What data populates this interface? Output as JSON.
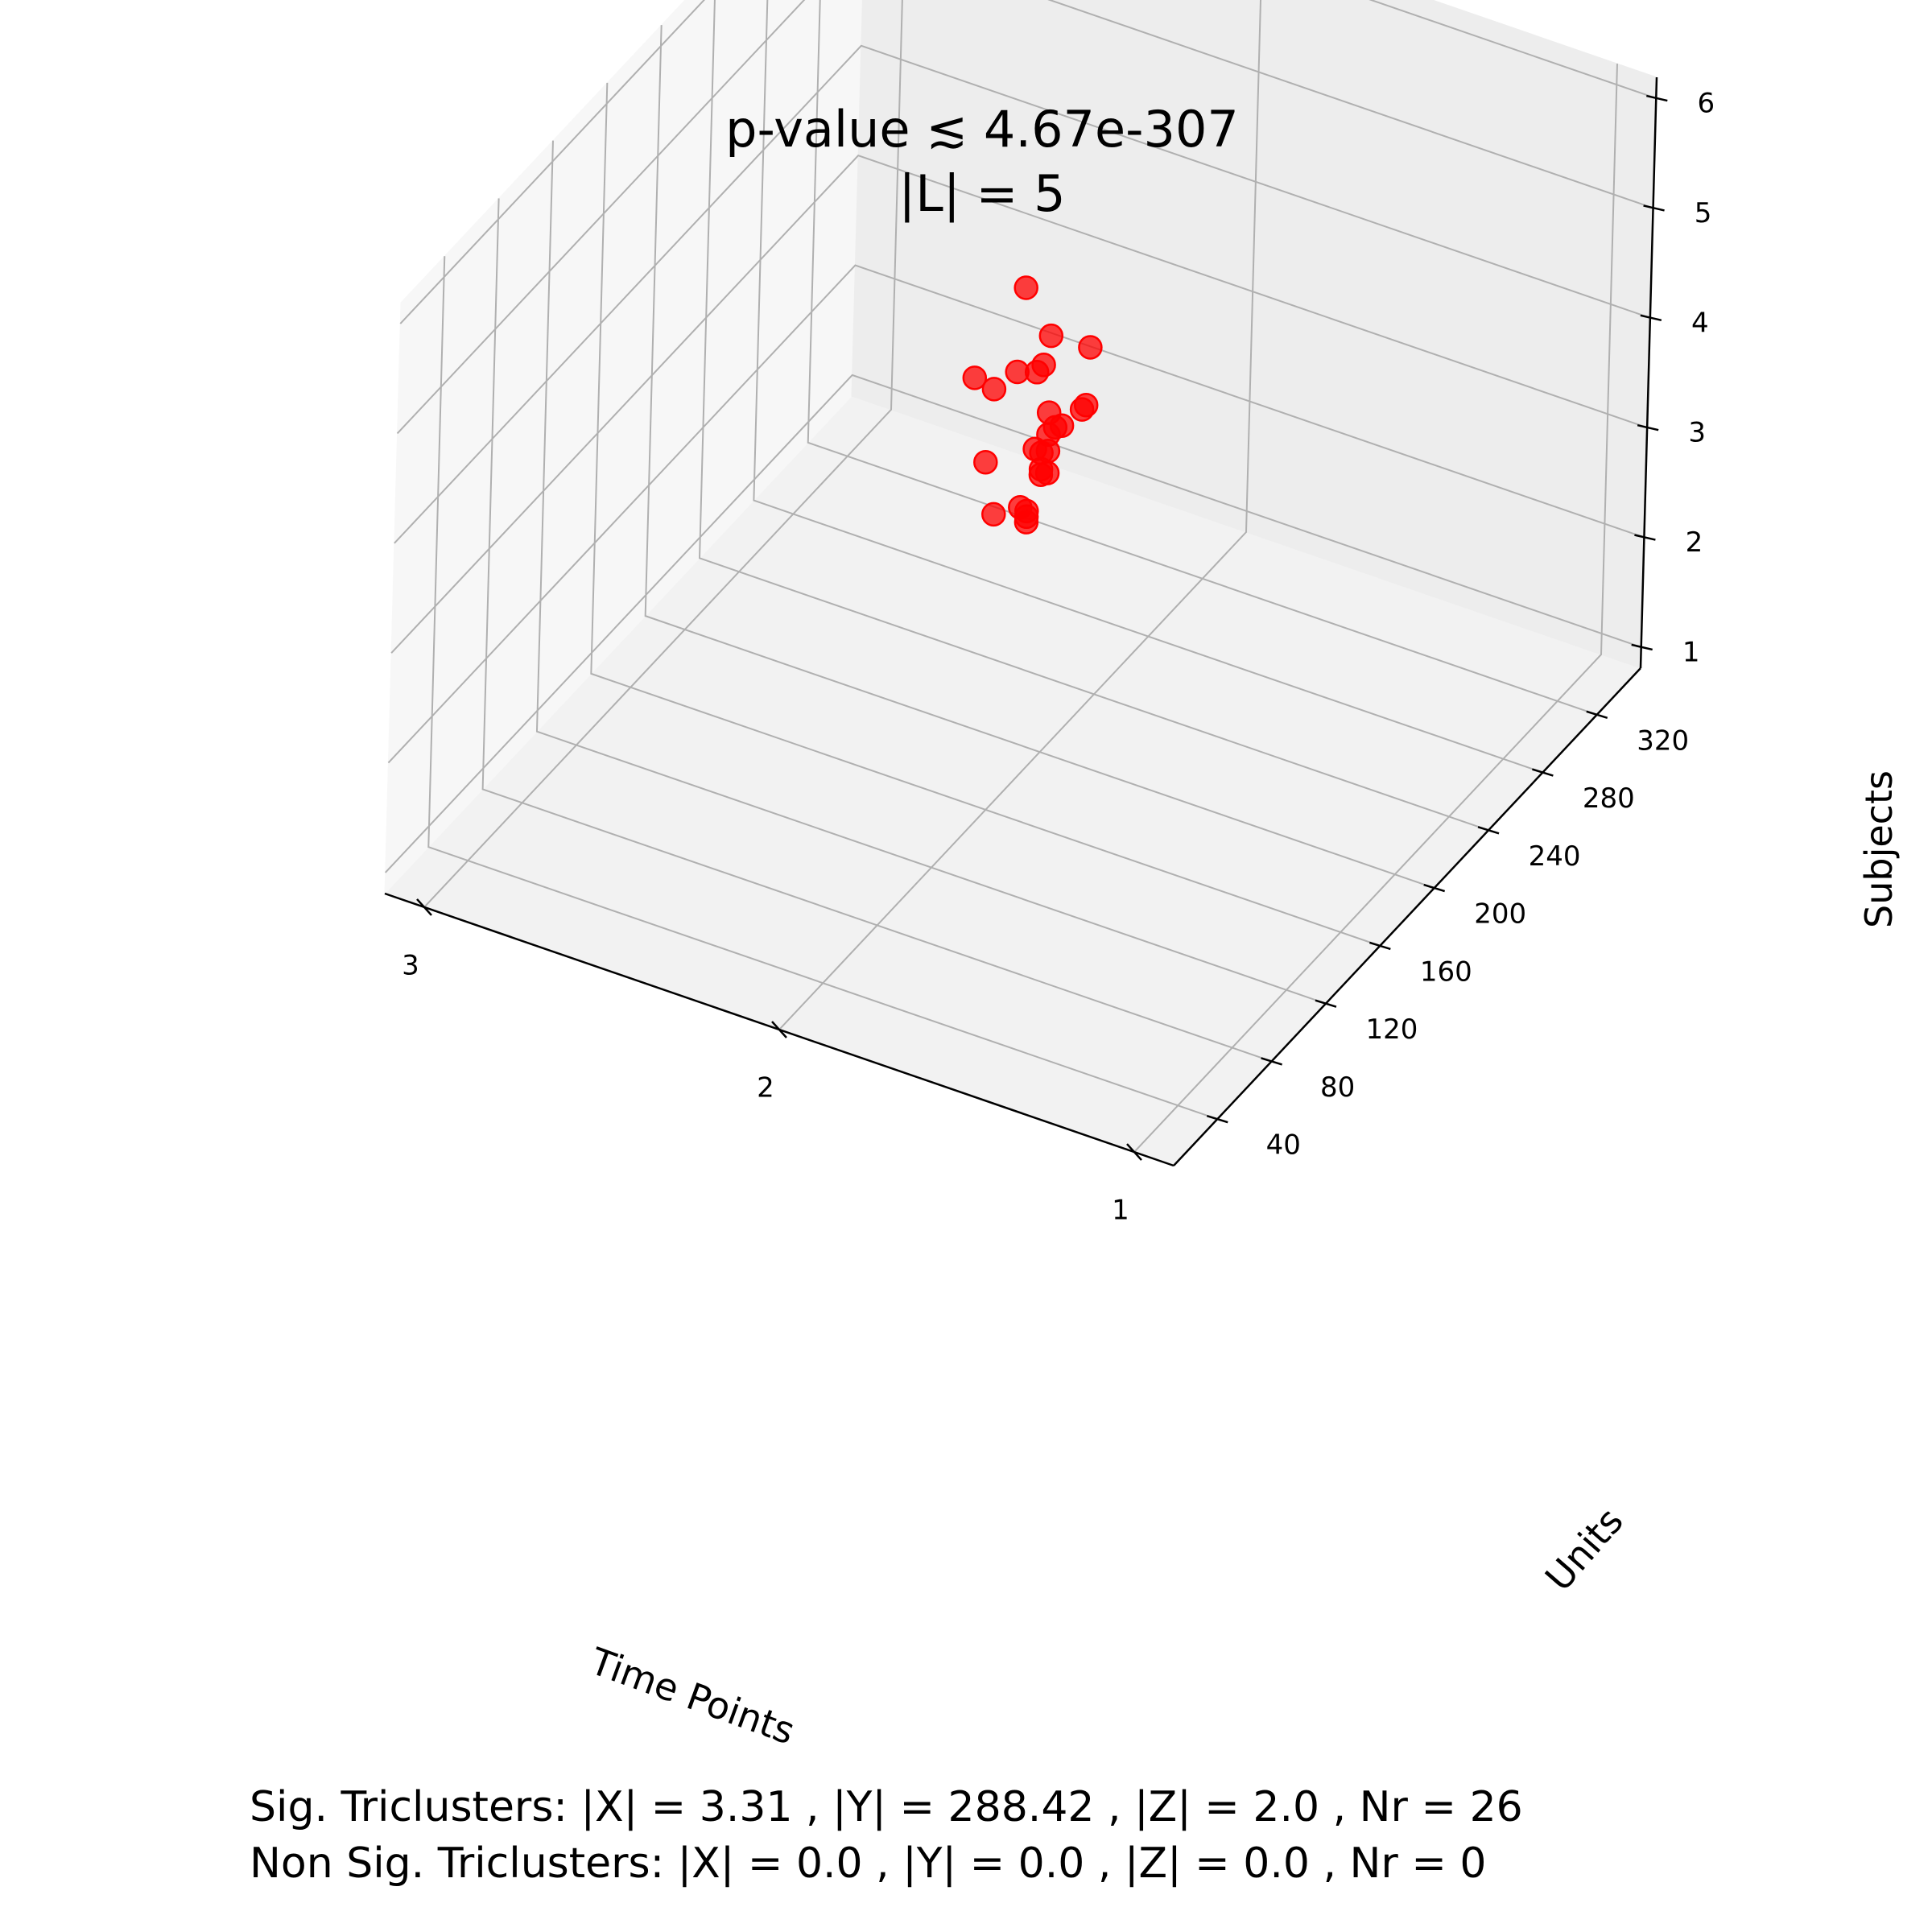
{
  "chart_data": {
    "type": "scatter",
    "title_lines": [
      "p-value ≲ 4.67e-307",
      "|L| = 5"
    ],
    "xlabel": "Time Points",
    "ylabel": "Units",
    "zlabel": "Subjects",
    "xlim": [
      1,
      3
    ],
    "ylim": [
      20,
      340
    ],
    "zlim": [
      1,
      6
    ],
    "x_ticks": [
      "1",
      "2",
      "3"
    ],
    "y_ticks": [
      "40",
      "80",
      "120",
      "160",
      "200",
      "240",
      "280",
      "320"
    ],
    "z_ticks": [
      "1",
      "2",
      "3",
      "4",
      "5",
      "6"
    ],
    "grid": true,
    "marker_color": "#ff0000",
    "series": [
      {
        "points": [
          {
            "x": 2.0,
            "y": 180,
            "z": 5.3
          },
          {
            "x": 2.0,
            "y": 175,
            "z": 4.6
          },
          {
            "x": 2.1,
            "y": 170,
            "z": 4.5
          },
          {
            "x": 2.0,
            "y": 200,
            "z": 4.6
          },
          {
            "x": 2.0,
            "y": 190,
            "z": 4.4
          },
          {
            "x": 2.0,
            "y": 195,
            "z": 4.4
          },
          {
            "x": 2.1,
            "y": 185,
            "z": 4.2
          },
          {
            "x": 2.0,
            "y": 230,
            "z": 4.1
          },
          {
            "x": 2.0,
            "y": 200,
            "z": 3.9
          },
          {
            "x": 2.0,
            "y": 190,
            "z": 3.7
          },
          {
            "x": 2.0,
            "y": 200,
            "z": 3.7
          },
          {
            "x": 2.0,
            "y": 205,
            "z": 3.7
          },
          {
            "x": 2.0,
            "y": 210,
            "z": 3.65
          },
          {
            "x": 2.0,
            "y": 195,
            "z": 3.6
          },
          {
            "x": 2.1,
            "y": 180,
            "z": 3.6
          },
          {
            "x": 2.0,
            "y": 200,
            "z": 3.55
          },
          {
            "x": 2.0,
            "y": 225,
            "z": 3.6
          },
          {
            "x": 2.0,
            "y": 228,
            "z": 3.6
          },
          {
            "x": 2.0,
            "y": 160,
            "z": 3.5
          },
          {
            "x": 2.0,
            "y": 195,
            "z": 3.45
          },
          {
            "x": 2.0,
            "y": 200,
            "z": 3.35
          },
          {
            "x": 2.0,
            "y": 180,
            "z": 3.3
          },
          {
            "x": 2.0,
            "y": 185,
            "z": 3.2
          },
          {
            "x": 2.0,
            "y": 185,
            "z": 3.15
          },
          {
            "x": 2.0,
            "y": 185,
            "z": 3.1
          },
          {
            "x": 2.0,
            "y": 195,
            "z": 3.4
          }
        ]
      }
    ]
  },
  "footer": {
    "line1": "Sig. Triclusters: |X| = 3.31 , |Y| = 288.42 , |Z| = 2.0 , Nr = 26",
    "line2": "Non Sig. Triclusters: |X| = 0.0 , |Y| = 0.0 , |Z| = 0.0 , Nr = 0"
  }
}
